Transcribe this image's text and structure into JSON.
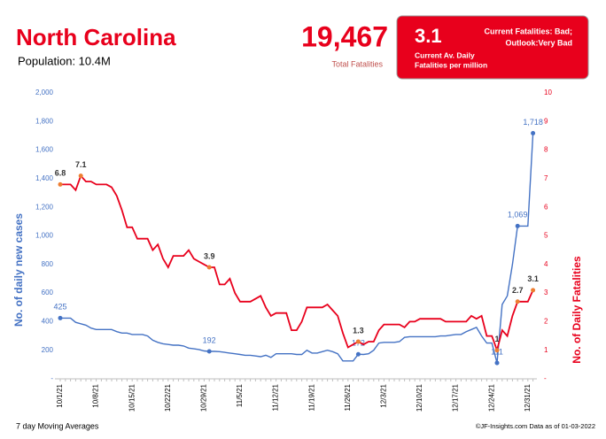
{
  "header": {
    "title": "North Carolina",
    "population": "Population: 10.4M",
    "total": "19,467",
    "total_label": "Total Fatalities",
    "rate": "3.1",
    "rate_label_1": "Current Av. Daily",
    "rate_label_2": "Fatalities per million",
    "status_1": "Current Fatalities: Bad;",
    "status_2": "Outlook:Very Bad"
  },
  "footer": {
    "left": "7 day Moving Averages",
    "right": "©JF-Insights.com  Data as of 01-03-2022"
  },
  "chart_data": {
    "type": "line",
    "ylabel": "No. of daily new  cases",
    "y2label": "No. of Daily Fatalities",
    "categories": [
      "10/1/21",
      null,
      null,
      null,
      null,
      null,
      null,
      "10/8/21",
      null,
      null,
      null,
      null,
      null,
      null,
      "10/15/21",
      null,
      null,
      null,
      null,
      null,
      null,
      "10/22/21",
      null,
      null,
      null,
      null,
      null,
      null,
      "10/29/21",
      null,
      null,
      null,
      null,
      null,
      null,
      "11/5/21",
      null,
      null,
      null,
      null,
      null,
      null,
      "11/12/21",
      null,
      null,
      null,
      null,
      null,
      null,
      "11/19/21",
      null,
      null,
      null,
      null,
      null,
      null,
      "11/26/21",
      null,
      null,
      null,
      null,
      null,
      null,
      "12/3/21",
      null,
      null,
      null,
      null,
      null,
      null,
      "12/10/21",
      null,
      null,
      null,
      null,
      null,
      null,
      "12/17/21",
      null,
      null,
      null,
      null,
      null,
      null,
      "12/24/21",
      null,
      null,
      null,
      null,
      null,
      null,
      "12/31/21",
      null
    ],
    "ylim": [
      0,
      2000
    ],
    "yticks": [
      {
        "value": 0,
        "label": "-"
      },
      200,
      400,
      600,
      800,
      {
        "value": 1000,
        "label": "1,000"
      },
      {
        "value": 1200,
        "label": "1,200"
      },
      {
        "value": 1400,
        "label": "1,400"
      },
      {
        "value": 1600,
        "label": "1,600"
      },
      {
        "value": 1800,
        "label": "1,800"
      },
      {
        "value": 2000,
        "label": "2,000"
      }
    ],
    "y2lim": [
      0,
      10
    ],
    "y2ticks": [
      {
        "value": 0,
        "label": "-"
      },
      1,
      2,
      3,
      4,
      5,
      6,
      7,
      8,
      9,
      10
    ],
    "series": [
      {
        "name": "Daily new cases",
        "color": "#4472c4",
        "marker_color": "#4472c4",
        "values": [
          425,
          425,
          425,
          395,
          385,
          375,
          355,
          345,
          345,
          345,
          345,
          330,
          320,
          320,
          310,
          310,
          310,
          300,
          270,
          255,
          245,
          240,
          235,
          235,
          230,
          215,
          210,
          205,
          195,
          192,
          192,
          190,
          185,
          180,
          175,
          170,
          165,
          165,
          160,
          155,
          165,
          150,
          175,
          175,
          175,
          175,
          170,
          170,
          200,
          180,
          180,
          190,
          200,
          190,
          175,
          125,
          125,
          125,
          172,
          170,
          175,
          200,
          250,
          255,
          255,
          255,
          260,
          290,
          295,
          295,
          295,
          295,
          295,
          295,
          300,
          300,
          305,
          310,
          310,
          330,
          345,
          360,
          300,
          250,
          250,
          111,
          520,
          580,
          800,
          1069,
          1069,
          1069,
          1718
        ],
        "value_labels": [
          "425",
          null,
          null,
          null,
          null,
          null,
          null,
          null,
          null,
          null,
          null,
          null,
          null,
          null,
          null,
          null,
          null,
          null,
          null,
          null,
          null,
          null,
          null,
          null,
          null,
          null,
          null,
          null,
          null,
          "192",
          null,
          null,
          null,
          null,
          null,
          null,
          null,
          null,
          null,
          null,
          null,
          null,
          null,
          null,
          null,
          null,
          null,
          null,
          null,
          null,
          null,
          null,
          null,
          null,
          null,
          null,
          null,
          null,
          "172",
          null,
          null,
          null,
          null,
          null,
          null,
          null,
          null,
          null,
          null,
          null,
          null,
          null,
          null,
          null,
          null,
          null,
          null,
          null,
          null,
          null,
          null,
          null,
          null,
          null,
          null,
          "111",
          null,
          null,
          null,
          "1,069",
          null,
          null,
          "1,718"
        ]
      },
      {
        "name": "Daily fatalities",
        "color": "#e8001c",
        "marker_color": "#ed7d31",
        "axis": "y2",
        "values": [
          6.8,
          6.8,
          6.8,
          6.6,
          7.1,
          6.9,
          6.9,
          6.8,
          6.8,
          6.8,
          6.7,
          6.4,
          5.9,
          5.3,
          5.3,
          4.9,
          4.9,
          4.9,
          4.5,
          4.7,
          4.2,
          3.9,
          4.3,
          4.3,
          4.3,
          4.5,
          4.2,
          4.1,
          4.0,
          3.9,
          3.9,
          3.3,
          3.3,
          3.5,
          3.0,
          2.7,
          2.7,
          2.7,
          2.8,
          2.9,
          2.5,
          2.2,
          2.3,
          2.3,
          2.3,
          1.7,
          1.7,
          2.0,
          2.5,
          2.5,
          2.5,
          2.5,
          2.6,
          2.4,
          2.2,
          1.6,
          1.1,
          1.2,
          1.3,
          1.2,
          1.3,
          1.3,
          1.7,
          1.9,
          1.9,
          1.9,
          1.9,
          1.8,
          2.0,
          2.0,
          2.1,
          2.1,
          2.1,
          2.1,
          2.1,
          2.0,
          2.0,
          2.0,
          2.0,
          2.0,
          2.2,
          2.1,
          2.2,
          1.5,
          1.5,
          1.0,
          1.7,
          1.5,
          2.2,
          2.7,
          2.7,
          2.7,
          3.1
        ],
        "value_labels": [
          "6.8",
          null,
          null,
          null,
          "7.1",
          null,
          null,
          null,
          null,
          null,
          null,
          null,
          null,
          null,
          null,
          null,
          null,
          null,
          null,
          null,
          null,
          null,
          null,
          null,
          null,
          null,
          null,
          null,
          null,
          "3.9",
          null,
          null,
          null,
          null,
          null,
          null,
          null,
          null,
          null,
          null,
          null,
          null,
          null,
          null,
          null,
          null,
          null,
          null,
          null,
          null,
          null,
          null,
          null,
          null,
          null,
          null,
          null,
          null,
          "1.3",
          null,
          null,
          null,
          null,
          null,
          null,
          null,
          null,
          null,
          null,
          null,
          null,
          null,
          null,
          null,
          null,
          null,
          null,
          null,
          null,
          null,
          null,
          null,
          null,
          null,
          null,
          "1",
          null,
          null,
          null,
          "2.7",
          null,
          null,
          "3.1"
        ]
      }
    ]
  }
}
